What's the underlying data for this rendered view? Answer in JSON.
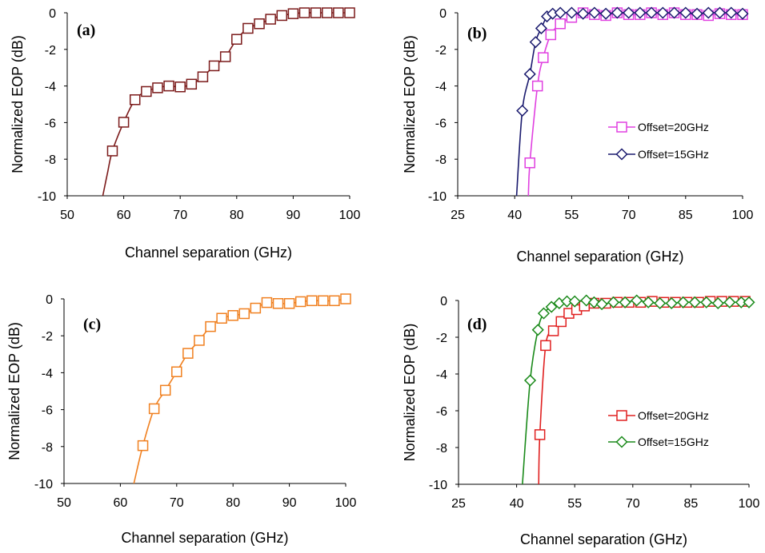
{
  "chart_data": [
    {
      "panel": "(a)",
      "type": "line",
      "xlabel": "Channel separation (GHz)",
      "ylabel": "Normalized EOP (dB)",
      "xlim": [
        50,
        100
      ],
      "ylim": [
        -10,
        0
      ],
      "xticks": [
        50,
        60,
        70,
        80,
        90,
        100
      ],
      "yticks": [
        0,
        -2,
        -4,
        -6,
        -8,
        -10
      ],
      "grid": false,
      "series": [
        {
          "marker": "square",
          "color": "#7b1a1a",
          "x": [
            58,
            60,
            62,
            64,
            66,
            68,
            70,
            72,
            74,
            76,
            78,
            80,
            82,
            84,
            86,
            88,
            90,
            92,
            94,
            96,
            98,
            100
          ],
          "y": [
            -7.55,
            -5.98,
            -4.75,
            -4.3,
            -4.1,
            -4.0,
            -4.05,
            -3.9,
            -3.5,
            -2.9,
            -2.4,
            -1.45,
            -0.85,
            -0.6,
            -0.35,
            -0.15,
            -0.05,
            0,
            0,
            0,
            0,
            0
          ],
          "curve_start": [
            56.3,
            -10
          ],
          "curve_mid": [
            57.1,
            -8.8
          ]
        }
      ]
    },
    {
      "panel": "(b)",
      "type": "line",
      "xlabel": "Channel separation (GHz)",
      "ylabel": "Normalized EOP (dB)",
      "xlim": [
        25,
        100
      ],
      "ylim": [
        -10,
        0
      ],
      "xticks": [
        25,
        40,
        55,
        70,
        85,
        100
      ],
      "yticks": [
        0,
        -2,
        -4,
        -6,
        -8,
        -10
      ],
      "grid": false,
      "legend": "center-right",
      "series": [
        {
          "name": "Offset=20GHz",
          "marker": "square",
          "color": "#e040e0",
          "x": [
            44,
            46,
            47.5,
            49.5,
            52,
            55,
            58,
            61,
            64,
            67,
            70,
            73,
            76,
            79,
            82,
            85,
            88,
            91,
            94,
            97,
            100
          ],
          "y": [
            -8.2,
            -4.0,
            -2.45,
            -1.2,
            -0.6,
            -0.25,
            0,
            -0.1,
            -0.15,
            0,
            -0.1,
            -0.1,
            0,
            -0.1,
            0,
            -0.1,
            -0.1,
            -0.15,
            -0.05,
            -0.1,
            -0.1
          ],
          "curve_start": [
            43.6,
            -10
          ]
        },
        {
          "name": "Offset=15GHz",
          "marker": "diamond",
          "color": "#1a1a6e",
          "x": [
            42,
            44,
            45.5,
            47,
            48.5,
            50,
            52,
            55,
            58,
            61,
            64,
            67,
            70,
            73,
            76,
            79,
            82,
            85,
            88,
            91,
            94,
            97,
            100
          ],
          "y": [
            -5.35,
            -3.35,
            -1.6,
            -0.85,
            -0.2,
            -0.05,
            0,
            0,
            -0.05,
            0,
            -0.05,
            0,
            0,
            0,
            0,
            0,
            0,
            0,
            -0.05,
            0,
            0,
            0,
            -0.05
          ],
          "curve_start": [
            40.5,
            -10
          ]
        }
      ]
    },
    {
      "panel": "(c)",
      "type": "line",
      "xlabel": "Channel separation (GHz)",
      "ylabel": "Normalized EOP (dB)",
      "xlim": [
        50,
        100
      ],
      "ylim": [
        -10,
        0
      ],
      "xticks": [
        50,
        60,
        70,
        80,
        90,
        100
      ],
      "yticks": [
        0,
        -2,
        -4,
        -6,
        -8,
        -10
      ],
      "grid": false,
      "series": [
        {
          "marker": "square",
          "color": "#f08020",
          "x": [
            64,
            66,
            68,
            70,
            72,
            74,
            76,
            78,
            80,
            82,
            84,
            86,
            88,
            90,
            92,
            94,
            96,
            98,
            100
          ],
          "y": [
            -7.95,
            -5.95,
            -4.95,
            -3.95,
            -2.95,
            -2.25,
            -1.5,
            -1.05,
            -0.9,
            -0.8,
            -0.5,
            -0.2,
            -0.25,
            -0.25,
            -0.15,
            -0.1,
            -0.1,
            -0.1,
            0
          ],
          "curve_start": [
            62.4,
            -10
          ]
        }
      ]
    },
    {
      "panel": "(d)",
      "type": "line",
      "xlabel": "Channel separation (GHz)",
      "ylabel": "Normalized EOP (dB)",
      "xlim": [
        25,
        100
      ],
      "ylim": [
        -10,
        0
      ],
      "xticks": [
        25,
        40,
        55,
        70,
        85,
        100
      ],
      "yticks": [
        0,
        -2,
        -4,
        -6,
        -8,
        -10
      ],
      "grid": false,
      "legend": "center-right",
      "series": [
        {
          "name": "Offset=20GHz",
          "marker": "square",
          "color": "#e02020",
          "x": [
            46,
            47.5,
            49.5,
            51.5,
            53.5,
            55.5,
            57.5,
            60,
            63,
            66,
            69,
            72,
            75,
            78,
            81,
            84,
            87,
            90,
            93,
            96,
            99
          ],
          "y": [
            -7.3,
            -2.45,
            -1.65,
            -1.15,
            -0.7,
            -0.5,
            -0.3,
            -0.15,
            -0.15,
            -0.1,
            -0.1,
            -0.1,
            -0.05,
            -0.1,
            -0.1,
            -0.1,
            -0.1,
            -0.05,
            -0.05,
            -0.05,
            -0.05
          ],
          "curve_start": [
            45.7,
            -10
          ]
        },
        {
          "name": "Offset=15GHz",
          "marker": "diamond",
          "color": "#1a8a1a",
          "x": [
            43.5,
            45.5,
            47,
            49,
            51,
            53,
            55,
            58,
            60,
            62,
            65,
            68,
            71,
            74,
            77,
            80,
            83,
            86,
            89,
            92,
            95,
            98,
            100
          ],
          "y": [
            -4.35,
            -1.6,
            -0.7,
            -0.35,
            -0.15,
            -0.05,
            -0.05,
            0,
            -0.1,
            -0.2,
            -0.1,
            -0.1,
            0,
            -0.1,
            -0.15,
            -0.15,
            -0.1,
            -0.1,
            -0.1,
            -0.15,
            -0.1,
            -0.1,
            -0.1
          ],
          "curve_start": [
            41.5,
            -10
          ]
        }
      ]
    }
  ]
}
